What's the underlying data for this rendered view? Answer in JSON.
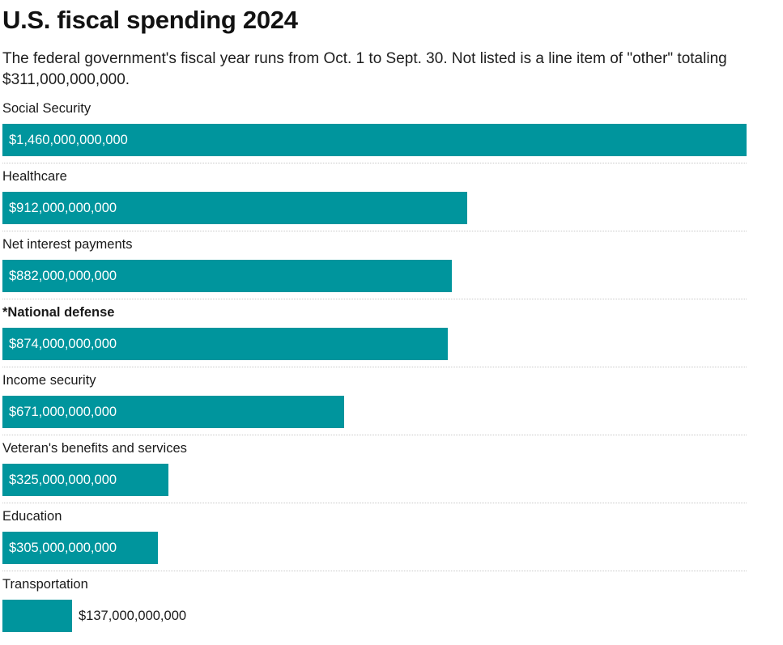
{
  "title": "U.S. fiscal spending 2024",
  "subtitle": "The federal government's fiscal year runs from Oct. 1 to Sept. 30. Not listed is a line item of \"other\" totaling $311,000,000,000.",
  "colors": {
    "bar": "#00959d",
    "label_inside": "#ffffff",
    "label_outside": "#1a1a1a"
  },
  "chart_data": {
    "type": "bar",
    "orientation": "horizontal",
    "title": "U.S. fiscal spending 2024",
    "xlim": [
      0,
      1460000000000
    ],
    "grid": false,
    "categories": [
      "Social Security",
      "Healthcare",
      "Net interest payments",
      "*National defense",
      "Income security",
      "Veteran's benefits and services",
      "Education",
      "Transportation"
    ],
    "values": [
      1460000000000,
      912000000000,
      882000000000,
      874000000000,
      671000000000,
      325000000000,
      305000000000,
      137000000000
    ],
    "value_labels": [
      "$1,460,000,000,000",
      "$912,000,000,000",
      "$882,000,000,000",
      "$874,000,000,000",
      "$671,000,000,000",
      "$325,000,000,000",
      "$305,000,000,000",
      "$137,000,000,000"
    ],
    "bold_categories": [
      "*National defense"
    ]
  }
}
